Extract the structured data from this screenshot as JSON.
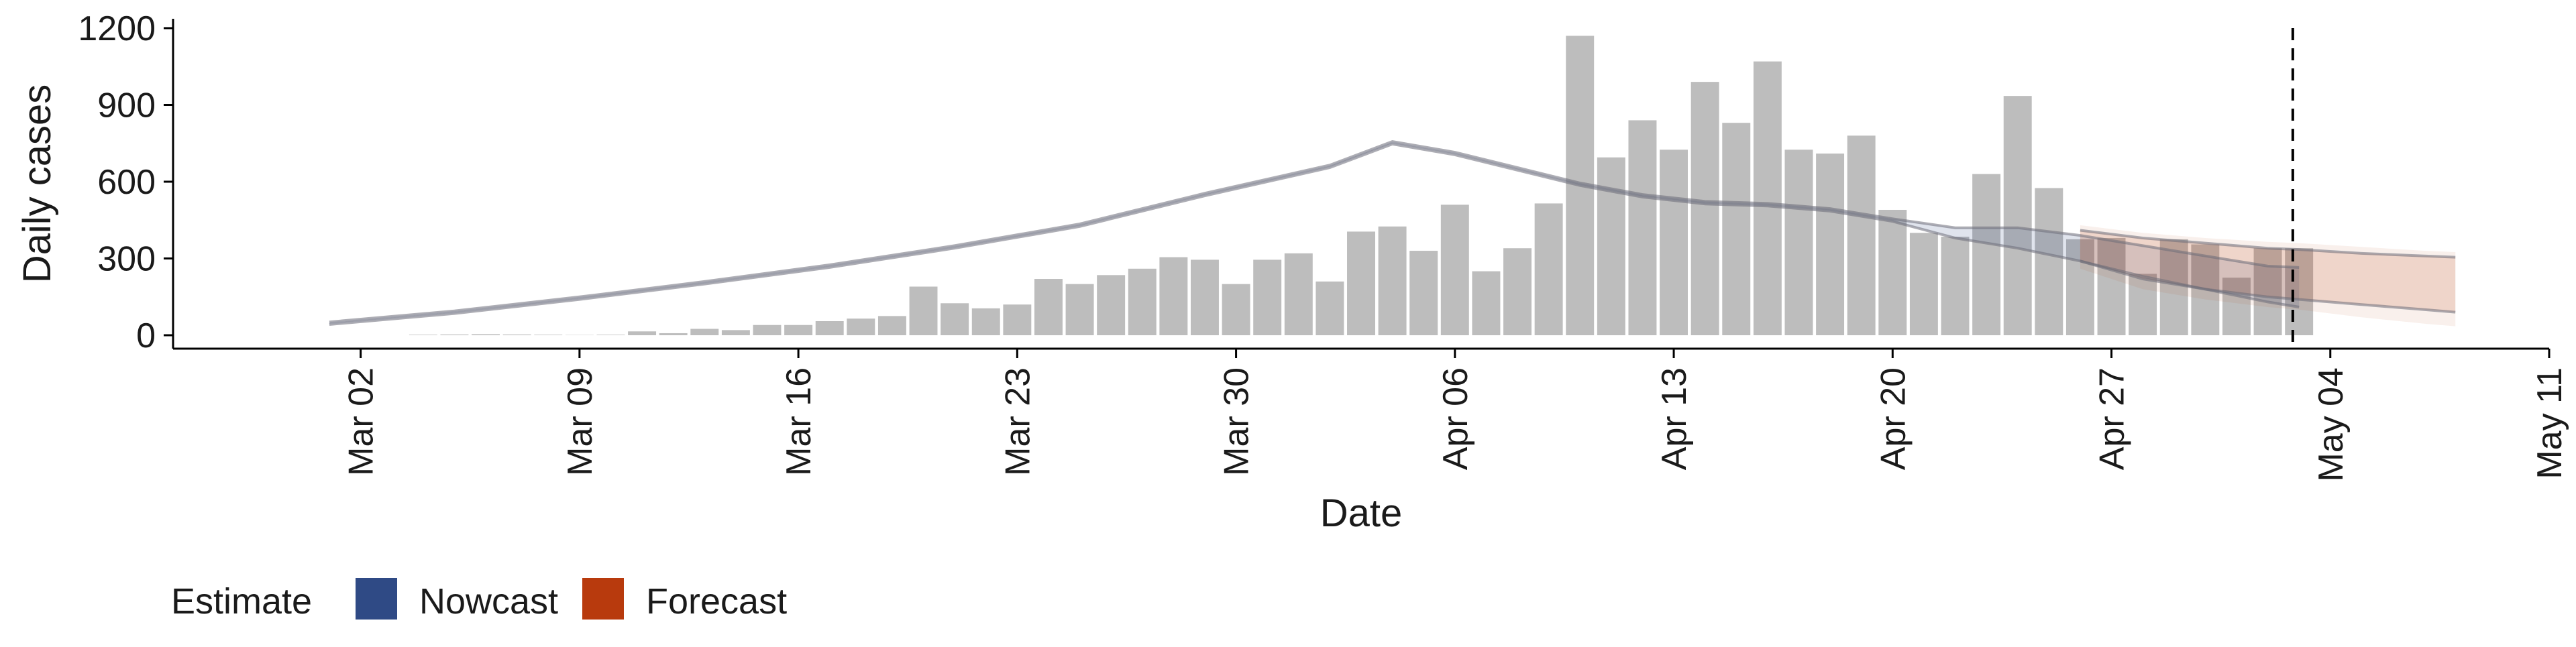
{
  "chart_data": {
    "type": "bar",
    "xlabel": "Date",
    "ylabel": "Daily cases",
    "ylim": [
      0,
      1200
    ],
    "yticks": [
      0,
      300,
      600,
      900,
      1200
    ],
    "xlim": [
      "2020-02-25",
      "2020-05-11"
    ],
    "xticks": [
      "2020-03-02",
      "2020-03-09",
      "2020-03-16",
      "2020-03-23",
      "2020-03-30",
      "2020-04-06",
      "2020-04-13",
      "2020-04-20",
      "2020-04-27",
      "2020-05-04",
      "2020-05-11"
    ],
    "xtick_labels": [
      "Mar 02",
      "Mar 09",
      "Mar 16",
      "Mar 23",
      "Mar 30",
      "Apr 06",
      "Apr 13",
      "Apr 20",
      "Apr 27",
      "May 04",
      "May 11"
    ],
    "grid": false,
    "reference_line": {
      "date": "2020-05-03",
      "style": "dashed"
    },
    "bar_color": "#bdbdbd",
    "bars": {
      "x": [
        "2020-03-04",
        "2020-03-05",
        "2020-03-06",
        "2020-03-07",
        "2020-03-08",
        "2020-03-09",
        "2020-03-10",
        "2020-03-11",
        "2020-03-12",
        "2020-03-13",
        "2020-03-14",
        "2020-03-15",
        "2020-03-16",
        "2020-03-17",
        "2020-03-18",
        "2020-03-19",
        "2020-03-20",
        "2020-03-21",
        "2020-03-22",
        "2020-03-23",
        "2020-03-24",
        "2020-03-25",
        "2020-03-26",
        "2020-03-27",
        "2020-03-28",
        "2020-03-29",
        "2020-03-30",
        "2020-03-31",
        "2020-04-01",
        "2020-04-02",
        "2020-04-03",
        "2020-04-04",
        "2020-04-05",
        "2020-04-06",
        "2020-04-07",
        "2020-04-08",
        "2020-04-09",
        "2020-04-10",
        "2020-04-11",
        "2020-04-12",
        "2020-04-13",
        "2020-04-14",
        "2020-04-15",
        "2020-04-16",
        "2020-04-17",
        "2020-04-18",
        "2020-04-19",
        "2020-04-20",
        "2020-04-21",
        "2020-04-22",
        "2020-04-23",
        "2020-04-24",
        "2020-04-25",
        "2020-04-26",
        "2020-04-27",
        "2020-04-28",
        "2020-04-29",
        "2020-04-30",
        "2020-05-01",
        "2020-05-02",
        "2020-05-03"
      ],
      "values": [
        2,
        3,
        4,
        3,
        2,
        1,
        2,
        15,
        8,
        25,
        20,
        40,
        40,
        55,
        65,
        75,
        190,
        125,
        105,
        120,
        220,
        200,
        235,
        260,
        305,
        295,
        200,
        295,
        320,
        210,
        405,
        425,
        330,
        510,
        250,
        340,
        515,
        1170,
        695,
        840,
        725,
        990,
        830,
        1070,
        725,
        710,
        780,
        490,
        400,
        385,
        630,
        935,
        575,
        375,
        380,
        240,
        375,
        355,
        225,
        340,
        340
      ]
    },
    "series": [
      {
        "name": "Nowcast",
        "color": "#2f4a85",
        "x": [
          "2020-03-01",
          "2020-03-05",
          "2020-03-09",
          "2020-03-13",
          "2020-03-17",
          "2020-03-21",
          "2020-03-25",
          "2020-03-29",
          "2020-04-02",
          "2020-04-04",
          "2020-04-06",
          "2020-04-08",
          "2020-04-10",
          "2020-04-12",
          "2020-04-14",
          "2020-04-16",
          "2020-04-18",
          "2020-04-20",
          "2020-04-22",
          "2020-04-24",
          "2020-04-26",
          "2020-04-28",
          "2020-04-30",
          "2020-05-02",
          "2020-05-03"
        ],
        "median": [
          47,
          90,
          145,
          205,
          270,
          345,
          430,
          550,
          660,
          752,
          710,
          650,
          590,
          545,
          518,
          510,
          490,
          450,
          400,
          380,
          340,
          290,
          245,
          200,
          190
        ],
        "lower": [
          42,
          85,
          140,
          200,
          265,
          340,
          425,
          545,
          655,
          747,
          705,
          645,
          585,
          540,
          513,
          505,
          485,
          445,
          380,
          340,
          290,
          230,
          180,
          130,
          110
        ],
        "upper": [
          52,
          95,
          150,
          210,
          275,
          350,
          435,
          555,
          665,
          757,
          715,
          655,
          595,
          550,
          523,
          515,
          495,
          455,
          420,
          420,
          390,
          350,
          310,
          270,
          265
        ]
      },
      {
        "name": "Forecast",
        "color": "#b83a0d",
        "x": [
          "2020-04-26",
          "2020-04-28",
          "2020-04-30",
          "2020-05-02",
          "2020-05-03",
          "2020-05-05",
          "2020-05-07",
          "2020-05-08"
        ],
        "median": [
          360,
          300,
          260,
          240,
          230,
          215,
          200,
          190
        ],
        "lower": [
          290,
          220,
          180,
          150,
          140,
          120,
          100,
          90
        ],
        "upper": [
          410,
          380,
          360,
          340,
          335,
          320,
          310,
          305
        ],
        "outer_lower": [
          260,
          180,
          140,
          110,
          100,
          70,
          45,
          35
        ],
        "outer_upper": [
          430,
          400,
          380,
          365,
          360,
          345,
          330,
          325
        ]
      }
    ],
    "legend": {
      "title": "Estimate",
      "position": "bottom-left",
      "items": [
        {
          "label": "Nowcast",
          "color": "#2f4a85"
        },
        {
          "label": "Forecast",
          "color": "#b83a0d"
        }
      ]
    }
  }
}
